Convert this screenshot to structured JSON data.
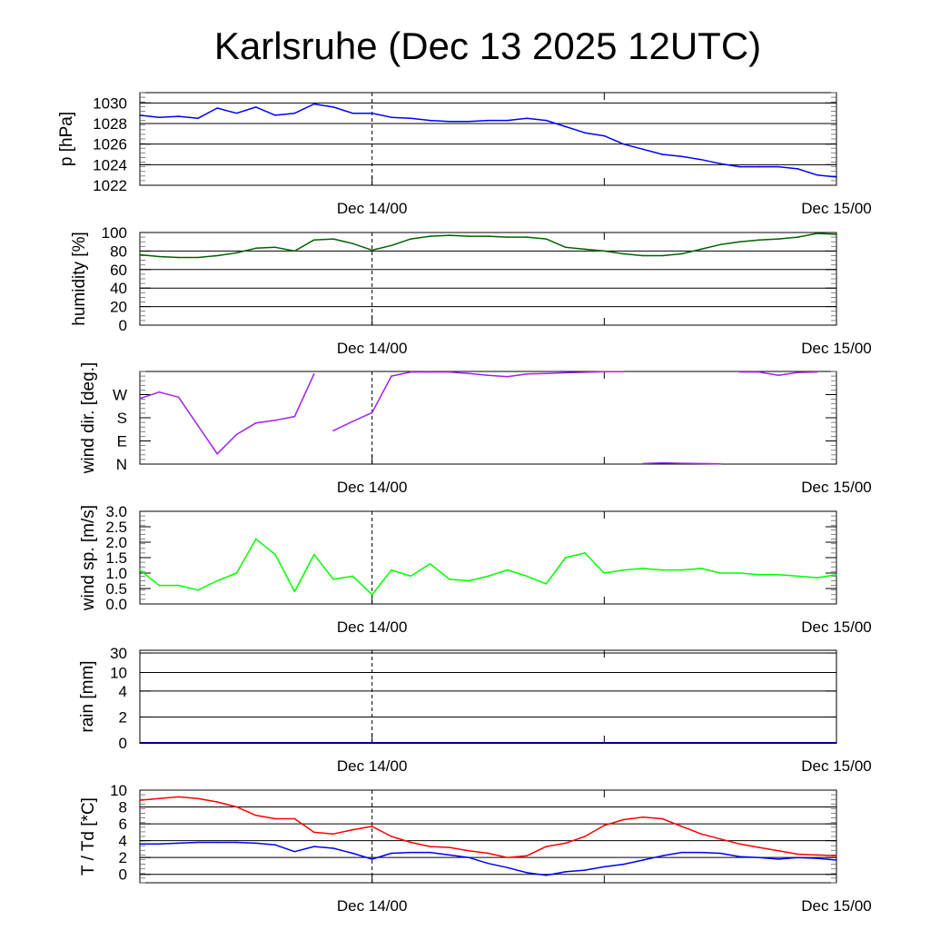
{
  "chart_data": [
    {
      "id": "pressure",
      "type": "line",
      "title": "Karlsruhe (Dec 13 2025 12UTC)",
      "ylabel": "p [hPa]",
      "ylim": [
        1022,
        1031
      ],
      "yticks": [
        1022,
        1024,
        1026,
        1028,
        1030
      ],
      "ytick_labels": [
        "1022",
        "1024",
        "1026",
        "1028",
        "1030"
      ],
      "grid": true,
      "xlabel_ticks": [
        "Dec 14/00",
        "Dec 15/00"
      ],
      "series": [
        {
          "name": "p",
          "color": "#0000ff",
          "values": [
            1028.8,
            1028.6,
            1028.7,
            1028.5,
            1029.5,
            1029.0,
            1029.6,
            1028.8,
            1029.0,
            1029.9,
            1029.6,
            1029.0,
            1029.0,
            1028.6,
            1028.5,
            1028.3,
            1028.2,
            1028.2,
            1028.3,
            1028.3,
            1028.5,
            1028.3,
            1027.7,
            1027.1,
            1026.8,
            1026.0,
            1025.5,
            1025.0,
            1024.8,
            1024.5,
            1024.1,
            1023.8,
            1023.8,
            1023.8,
            1023.6,
            1023.0,
            1022.8
          ]
        }
      ]
    },
    {
      "id": "humidity",
      "type": "line",
      "ylabel": "humidity [%]",
      "ylim": [
        0,
        100
      ],
      "yticks": [
        0,
        20,
        40,
        60,
        80,
        100
      ],
      "ytick_labels": [
        "0",
        "20",
        "40",
        "60",
        "80",
        "100"
      ],
      "grid": true,
      "xlabel_ticks": [
        "Dec 14/00",
        "Dec 15/00"
      ],
      "series": [
        {
          "name": "humidity",
          "color": "#006400",
          "values": [
            76,
            74,
            73,
            73,
            75,
            78,
            83,
            84,
            80,
            92,
            93,
            88,
            81,
            86,
            93,
            96,
            97,
            96,
            96,
            95,
            95,
            93,
            84,
            82,
            80,
            77,
            75,
            75,
            77,
            82,
            87,
            90,
            92,
            93,
            95,
            99,
            98
          ]
        }
      ]
    },
    {
      "id": "wind_direction",
      "type": "line",
      "ylabel": "wind dir. [deg.]",
      "ylim": [
        0,
        360
      ],
      "yticks": [
        0,
        90,
        180,
        270
      ],
      "ytick_labels": [
        "N",
        "E",
        "S",
        "W"
      ],
      "grid": false,
      "xlabel_ticks": [
        "Dec 14/00",
        "Dec 15/00"
      ],
      "series": [
        {
          "name": "wind direction",
          "color": "#a020f0",
          "values": [
            255,
            280,
            260,
            150,
            40,
            115,
            160,
            170,
            185,
            350,
            130,
            166,
            200,
            342,
            358,
            358,
            358,
            352,
            345,
            340,
            350,
            352,
            355,
            357,
            359,
            359,
            2,
            5,
            3,
            2,
            1,
            358,
            358,
            345,
            356,
            358,
            20
          ]
        }
      ]
    },
    {
      "id": "wind_speed",
      "type": "line",
      "ylabel": "wind sp. [m/s]",
      "ylim": [
        0,
        3
      ],
      "yticks": [
        0,
        0.5,
        1,
        1.5,
        2,
        2.5,
        3
      ],
      "ytick_labels": [
        "0.0",
        "0.5",
        "1.0",
        "1.5",
        "2.0",
        "2.5",
        "3.0"
      ],
      "grid": false,
      "xlabel_ticks": [
        "Dec 14/00",
        "Dec 15/00"
      ],
      "series": [
        {
          "name": "wind speed",
          "color": "#00ff00",
          "values": [
            1.1,
            0.6,
            0.6,
            0.45,
            0.75,
            1.0,
            2.1,
            1.6,
            0.4,
            1.6,
            0.8,
            0.9,
            0.3,
            1.1,
            0.9,
            1.3,
            0.8,
            0.75,
            0.9,
            1.1,
            0.9,
            0.65,
            1.5,
            1.65,
            1.0,
            1.1,
            1.15,
            1.1,
            1.1,
            1.15,
            1.0,
            1.0,
            0.95,
            0.95,
            0.9,
            0.85,
            0.95
          ]
        }
      ]
    },
    {
      "id": "rain",
      "type": "line",
      "ylabel": "rain [mm]",
      "ylim": [
        0,
        30
      ],
      "yticks": [
        0,
        2,
        4,
        10,
        30
      ],
      "ytick_labels": [
        "0",
        "2",
        "4",
        "10",
        "30"
      ],
      "grid": true,
      "xlabel_ticks": [
        "Dec 14/00",
        "Dec 15/00"
      ],
      "series": [
        {
          "name": "rain",
          "color": "#00008b",
          "values": [
            0,
            0,
            0,
            0,
            0,
            0,
            0,
            0,
            0,
            0,
            0,
            0,
            0,
            0,
            0,
            0,
            0,
            0,
            0,
            0,
            0,
            0,
            0,
            0,
            0,
            0,
            0,
            0,
            0,
            0,
            0,
            0,
            0,
            0,
            0,
            0,
            0
          ]
        }
      ]
    },
    {
      "id": "temperature",
      "type": "line",
      "ylabel": "T / Td [*C]",
      "ylim": [
        -1,
        10
      ],
      "yticks": [
        0,
        2,
        4,
        6,
        8,
        10
      ],
      "ytick_labels": [
        "0",
        "2",
        "4",
        "6",
        "8",
        "10"
      ],
      "grid": true,
      "xlabel_ticks": [
        "Dec 14/00",
        "Dec 15/00"
      ],
      "series": [
        {
          "name": "T",
          "color": "#ff0000",
          "values": [
            8.8,
            9.0,
            9.2,
            9.0,
            8.6,
            8.0,
            7.0,
            6.6,
            6.6,
            5.0,
            4.8,
            5.3,
            5.7,
            4.5,
            3.8,
            3.3,
            3.2,
            2.8,
            2.5,
            2.0,
            2.2,
            3.3,
            3.7,
            4.5,
            5.8,
            6.5,
            6.8,
            6.6,
            5.7,
            4.8,
            4.2,
            3.6,
            3.2,
            2.8,
            2.4,
            2.3,
            2.2
          ]
        },
        {
          "name": "Td",
          "color": "#0000ff",
          "values": [
            3.6,
            3.6,
            3.7,
            3.8,
            3.8,
            3.8,
            3.7,
            3.5,
            2.7,
            3.3,
            3.1,
            2.5,
            1.8,
            2.5,
            2.6,
            2.6,
            2.3,
            2.0,
            1.3,
            0.8,
            0.2,
            -0.1,
            0.3,
            0.5,
            0.9,
            1.2,
            1.7,
            2.2,
            2.6,
            2.6,
            2.5,
            2.1,
            2.0,
            1.8,
            2.0,
            1.9,
            1.7
          ]
        }
      ]
    }
  ]
}
